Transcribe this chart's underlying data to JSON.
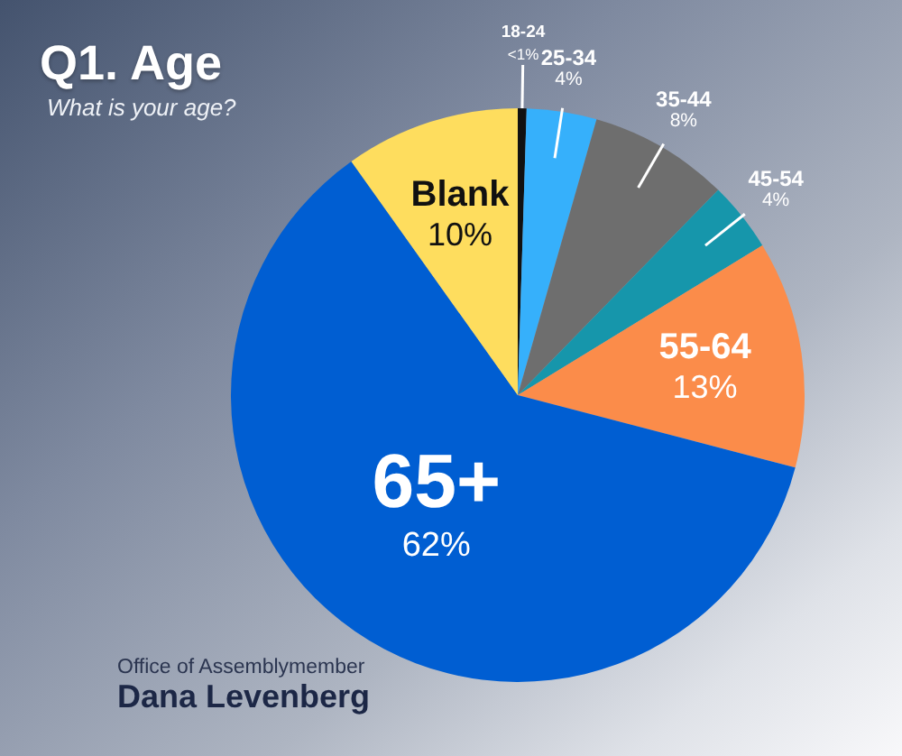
{
  "chart_data": {
    "type": "pie",
    "title": "Q1. Age",
    "subtitle": "What is your age?",
    "categories": [
      "18-24",
      "25-34",
      "35-44",
      "45-54",
      "55-64",
      "65+",
      "Blank"
    ],
    "values": [
      0.5,
      4,
      8,
      4,
      13,
      62,
      10
    ],
    "value_labels": [
      "<1%",
      "4%",
      "8%",
      "4%",
      "13%",
      "62%",
      "10%"
    ],
    "colors": [
      "#111111",
      "#36b0fb",
      "#6e6e6e",
      "#1696ab",
      "#fb8c4a",
      "#005ed2",
      "#fedd5e"
    ],
    "annotations": [
      "Office of Assemblymember",
      "Dana Levenberg"
    ]
  }
}
